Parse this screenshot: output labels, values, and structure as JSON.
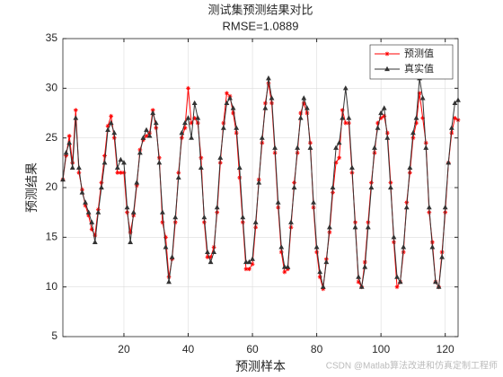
{
  "chart_data": {
    "type": "line",
    "title": "测试集预测结果对比",
    "subtitle": "RMSE=1.0889",
    "x_label": "预测样本",
    "y_label": "预测结果",
    "watermark": "CSDN @Matlab算法改进和仿真定制工程师",
    "x": [
      1,
      2,
      3,
      4,
      5,
      6,
      7,
      8,
      9,
      10,
      11,
      12,
      13,
      14,
      15,
      16,
      17,
      18,
      19,
      20,
      21,
      22,
      23,
      24,
      25,
      26,
      27,
      28,
      29,
      30,
      31,
      32,
      33,
      34,
      35,
      36,
      37,
      38,
      39,
      40,
      41,
      42,
      43,
      44,
      45,
      46,
      47,
      48,
      49,
      50,
      51,
      52,
      53,
      54,
      55,
      56,
      57,
      58,
      59,
      60,
      61,
      62,
      63,
      64,
      65,
      66,
      67,
      68,
      69,
      70,
      71,
      72,
      73,
      74,
      75,
      76,
      77,
      78,
      79,
      80,
      81,
      82,
      83,
      84,
      85,
      86,
      87,
      88,
      89,
      90,
      91,
      92,
      93,
      94,
      95,
      96,
      97,
      98,
      99,
      100,
      101,
      102,
      103,
      104,
      105,
      106,
      107,
      108,
      109,
      110,
      111,
      112,
      113,
      114,
      115,
      116,
      117,
      118,
      119,
      120,
      121,
      122,
      123,
      124
    ],
    "series": [
      {
        "name": "预测值",
        "color": "#ff0000",
        "marker": "star",
        "values": [
          20.8,
          23.2,
          25.2,
          22.5,
          27.8,
          21.5,
          19.8,
          18.2,
          17.2,
          15.8,
          15.2,
          17.8,
          20.5,
          23.2,
          26.2,
          27.2,
          25,
          21.5,
          21.5,
          21.5,
          17.5,
          15.5,
          17.2,
          20.2,
          23.8,
          24.8,
          25.2,
          25.5,
          27.8,
          26,
          23,
          16.5,
          15,
          11,
          12.8,
          16.5,
          21.5,
          25,
          26,
          30,
          26.5,
          27,
          26.5,
          23,
          16.5,
          13,
          13,
          14,
          17.5,
          22.5,
          26.5,
          29.5,
          29.2,
          27.5,
          25.5,
          21,
          16.5,
          11.8,
          11.8,
          12.3,
          16,
          20.8,
          24.5,
          28.5,
          30.5,
          28.5,
          23.5,
          18,
          13.5,
          11.5,
          11.8,
          16,
          20.5,
          23.5,
          27.5,
          28.5,
          27.5,
          24.5,
          18,
          13.5,
          11,
          9.8,
          12.8,
          15.5,
          19.5,
          22.5,
          23,
          27.8,
          26.5,
          26.5,
          21.5,
          16.5,
          10.5,
          10,
          12.5,
          16.5,
          20.5,
          23.5,
          26.5,
          27,
          27.2,
          25.5,
          20.5,
          14.5,
          10,
          10.5,
          13.5,
          18.5,
          21.5,
          25,
          26.5,
          29.5,
          27,
          24.5,
          17.5,
          14.5,
          10.5,
          10,
          13.5,
          17.5,
          22.5,
          25.5,
          27,
          26.8
        ]
      },
      {
        "name": "真实值",
        "color": "#333333",
        "marker": "triangle",
        "values": [
          20.8,
          23.5,
          24.5,
          22.0,
          27.0,
          22.0,
          19.5,
          18.5,
          17.5,
          16.5,
          14.5,
          17.5,
          20,
          22.5,
          25.8,
          26.5,
          25.5,
          22.0,
          22.8,
          22.5,
          18,
          14.5,
          17.5,
          20.5,
          23.5,
          25,
          25.8,
          25.2,
          27.5,
          26.5,
          22.5,
          17.5,
          14,
          10.5,
          13,
          17,
          21,
          25.5,
          26.5,
          27,
          25,
          28.5,
          27,
          22,
          17,
          13.5,
          12.5,
          13.5,
          18,
          23,
          26,
          28.5,
          29,
          28,
          26,
          22,
          17,
          12.5,
          12.5,
          12.8,
          16.5,
          20.5,
          25,
          28,
          31,
          29,
          24,
          18.5,
          14,
          12,
          12,
          16.5,
          20,
          24,
          27,
          29,
          28,
          24,
          18.5,
          14,
          11.5,
          10,
          12.5,
          16,
          20,
          24,
          24.5,
          27,
          30,
          27,
          22,
          16,
          11,
          10,
          12,
          16,
          20,
          24,
          26,
          27.5,
          28,
          25,
          20,
          15,
          11,
          10.5,
          14,
          18,
          22,
          25.5,
          27,
          31,
          29,
          24,
          18,
          14,
          10.5,
          10,
          13,
          18,
          22.5,
          26,
          28.5,
          28.8
        ]
      }
    ],
    "xlim": [
      1,
      124
    ],
    "xticks": [
      20,
      40,
      60,
      80,
      100,
      120
    ],
    "ylim": [
      5,
      35
    ],
    "yticks": [
      5,
      10,
      15,
      20,
      25,
      30,
      35
    ],
    "grid": true,
    "legend": "upper right"
  }
}
